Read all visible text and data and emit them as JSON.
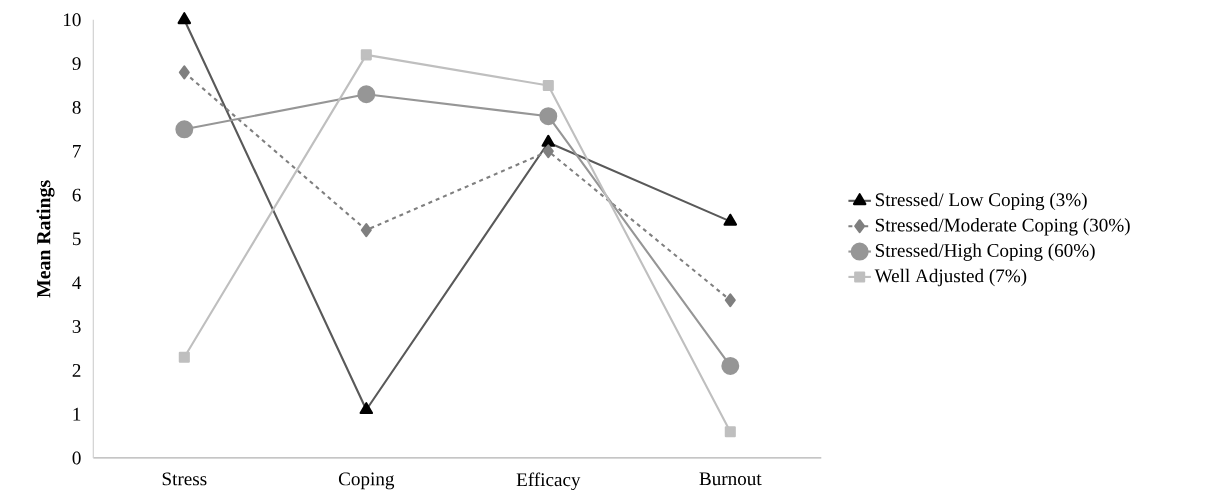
{
  "chart_data": {
    "type": "line",
    "ylabel": "Mean Ratings",
    "categories": [
      "Stress",
      "Coping",
      "Efficacy",
      "Burnout"
    ],
    "ylim": [
      0,
      10
    ],
    "yticks": [
      0,
      1,
      2,
      3,
      4,
      5,
      6,
      7,
      8,
      9,
      10
    ],
    "legend": "right",
    "series": [
      {
        "name": "Stressed/ Low Coping (3%)",
        "color": "#595959",
        "marker": "triangle",
        "line_style": "solid",
        "values": [
          10,
          1.1,
          7.2,
          5.4
        ]
      },
      {
        "name": "Stressed/Moderate Coping (30%)",
        "color": "#7f7f7f",
        "marker": "diamond",
        "line_style": "dashed",
        "values": [
          8.8,
          5.2,
          7.0,
          3.6
        ]
      },
      {
        "name": "Stressed/High Coping (60%)",
        "color": "#969696",
        "marker": "circle",
        "line_style": "solid",
        "values": [
          7.5,
          8.3,
          7.8,
          2.1
        ]
      },
      {
        "name": "Well Adjusted (7%)",
        "color": "#bfbfbf",
        "marker": "square",
        "line_style": "solid",
        "values": [
          2.3,
          9.2,
          8.5,
          0.6
        ]
      }
    ]
  }
}
